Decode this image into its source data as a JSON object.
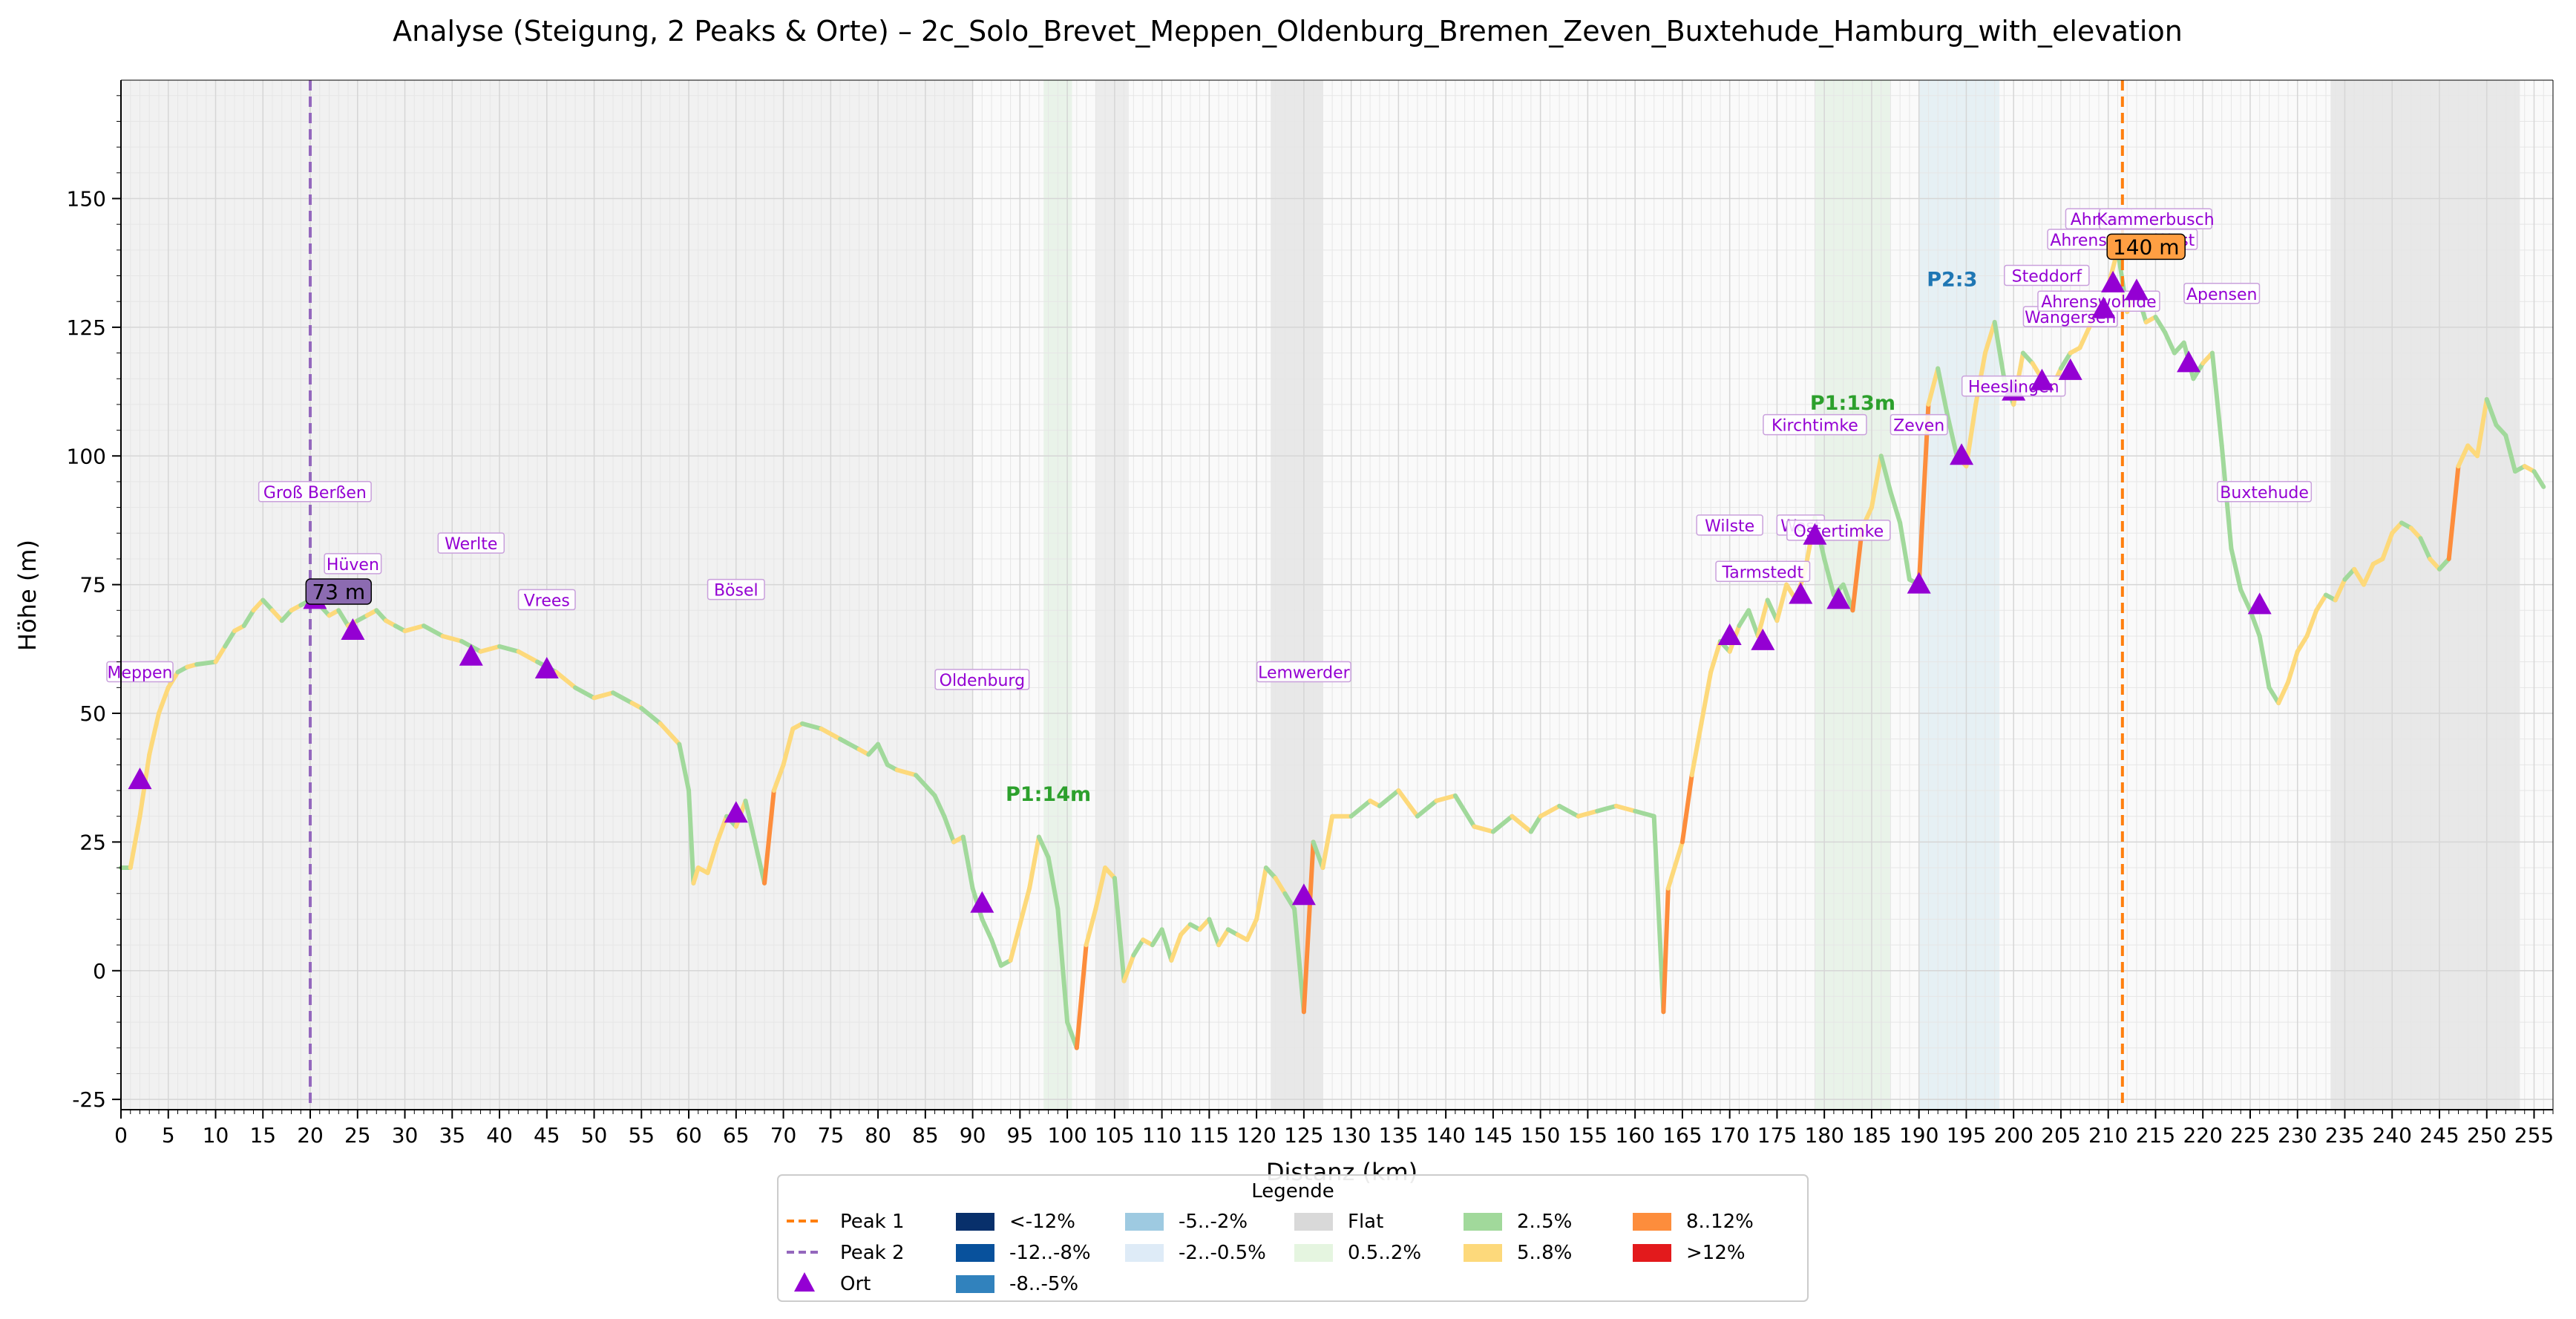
{
  "chart_data": {
    "type": "line",
    "title": "Analyse (Steigung, 2 Peaks & Orte) – 2c_Solo_Brevet_Meppen_Oldenburg_Bremen_Zeven_Buxtehude_Hamburg_with_elevation",
    "xlabel": "Distanz (km)",
    "ylabel": "Höhe (m)",
    "xlim": [
      0,
      257
    ],
    "ylim": [
      -27,
      173
    ],
    "x_ticks": [
      0,
      5,
      10,
      15,
      20,
      25,
      30,
      35,
      40,
      45,
      50,
      55,
      60,
      65,
      70,
      75,
      80,
      85,
      90,
      95,
      100,
      105,
      110,
      115,
      120,
      125,
      130,
      135,
      140,
      145,
      150,
      155,
      160,
      165,
      170,
      175,
      180,
      185,
      190,
      195,
      200,
      205,
      210,
      215,
      220,
      225,
      230,
      235,
      240,
      245,
      250,
      255
    ],
    "y_ticks": [
      -25,
      0,
      25,
      50,
      75,
      100,
      125,
      150
    ],
    "grid": true,
    "legend_position": "bottom-center",
    "elevation_profile": [
      [
        0,
        20
      ],
      [
        1,
        20
      ],
      [
        2,
        30
      ],
      [
        3,
        42
      ],
      [
        4,
        50
      ],
      [
        5,
        55
      ],
      [
        6,
        58
      ],
      [
        7,
        59
      ],
      [
        8,
        59.5
      ],
      [
        10,
        60
      ],
      [
        11,
        63
      ],
      [
        12,
        66
      ],
      [
        13,
        67
      ],
      [
        14,
        70
      ],
      [
        15,
        72
      ],
      [
        16,
        70
      ],
      [
        17,
        68
      ],
      [
        18,
        70
      ],
      [
        19,
        71
      ],
      [
        20,
        72
      ],
      [
        21,
        71
      ],
      [
        22,
        69
      ],
      [
        23,
        70
      ],
      [
        24,
        67
      ],
      [
        25,
        68
      ],
      [
        26,
        69
      ],
      [
        27,
        70
      ],
      [
        28,
        68
      ],
      [
        29,
        67
      ],
      [
        30,
        66
      ],
      [
        32,
        67
      ],
      [
        34,
        65
      ],
      [
        36,
        64
      ],
      [
        38,
        62
      ],
      [
        40,
        63
      ],
      [
        42,
        62
      ],
      [
        44,
        60
      ],
      [
        46,
        58
      ],
      [
        48,
        55
      ],
      [
        50,
        53
      ],
      [
        52,
        54
      ],
      [
        54,
        52
      ],
      [
        55,
        51
      ],
      [
        57,
        48
      ],
      [
        59,
        44
      ],
      [
        60,
        35
      ],
      [
        60.5,
        17
      ],
      [
        61,
        20
      ],
      [
        62,
        19
      ],
      [
        63,
        25
      ],
      [
        64,
        30
      ],
      [
        65,
        28
      ],
      [
        66,
        33
      ],
      [
        67,
        25
      ],
      [
        68,
        17
      ],
      [
        69,
        35
      ],
      [
        70,
        40
      ],
      [
        71,
        47
      ],
      [
        72,
        48
      ],
      [
        74,
        47
      ],
      [
        76,
        45
      ],
      [
        78,
        43
      ],
      [
        79,
        42
      ],
      [
        80,
        44
      ],
      [
        81,
        40
      ],
      [
        82,
        39
      ],
      [
        84,
        38
      ],
      [
        86,
        34
      ],
      [
        87,
        30
      ],
      [
        88,
        25
      ],
      [
        89,
        26
      ],
      [
        90,
        16
      ],
      [
        91,
        10
      ],
      [
        92,
        6
      ],
      [
        93,
        1
      ],
      [
        94,
        2
      ],
      [
        95,
        9
      ],
      [
        96,
        16
      ],
      [
        97,
        26
      ],
      [
        98,
        22
      ],
      [
        99,
        12
      ],
      [
        100,
        -10
      ],
      [
        101,
        -15
      ],
      [
        102,
        5
      ],
      [
        103,
        12
      ],
      [
        104,
        20
      ],
      [
        105,
        18
      ],
      [
        106,
        -2
      ],
      [
        107,
        3
      ],
      [
        108,
        6
      ],
      [
        109,
        5
      ],
      [
        110,
        8
      ],
      [
        111,
        2
      ],
      [
        112,
        7
      ],
      [
        113,
        9
      ],
      [
        114,
        8
      ],
      [
        115,
        10
      ],
      [
        116,
        5
      ],
      [
        117,
        8
      ],
      [
        118,
        7
      ],
      [
        119,
        6
      ],
      [
        120,
        10
      ],
      [
        121,
        20
      ],
      [
        122,
        18
      ],
      [
        123,
        15
      ],
      [
        124,
        12
      ],
      [
        125,
        -8
      ],
      [
        126,
        25
      ],
      [
        127,
        20
      ],
      [
        128,
        30
      ],
      [
        130,
        30
      ],
      [
        132,
        33
      ],
      [
        133,
        32
      ],
      [
        135,
        35
      ],
      [
        137,
        30
      ],
      [
        139,
        33
      ],
      [
        141,
        34
      ],
      [
        143,
        28
      ],
      [
        145,
        27
      ],
      [
        147,
        30
      ],
      [
        149,
        27
      ],
      [
        150,
        30
      ],
      [
        152,
        32
      ],
      [
        154,
        30
      ],
      [
        156,
        31
      ],
      [
        158,
        32
      ],
      [
        160,
        31
      ],
      [
        162,
        30
      ],
      [
        163,
        -8
      ],
      [
        163.5,
        16
      ],
      [
        165,
        25
      ],
      [
        166,
        38
      ],
      [
        167,
        48
      ],
      [
        168,
        58
      ],
      [
        169,
        64
      ],
      [
        170,
        62
      ],
      [
        171,
        67
      ],
      [
        172,
        70
      ],
      [
        173,
        65
      ],
      [
        174,
        72
      ],
      [
        175,
        68
      ],
      [
        176,
        75
      ],
      [
        177,
        72
      ],
      [
        178,
        78
      ],
      [
        179,
        88
      ],
      [
        180,
        80
      ],
      [
        181,
        73
      ],
      [
        182,
        75
      ],
      [
        183,
        70
      ],
      [
        184,
        86
      ],
      [
        185,
        90
      ],
      [
        186,
        100
      ],
      [
        187,
        93
      ],
      [
        188,
        87
      ],
      [
        189,
        76
      ],
      [
        190,
        75
      ],
      [
        191,
        110
      ],
      [
        192,
        117
      ],
      [
        193,
        108
      ],
      [
        194,
        100
      ],
      [
        195,
        98
      ],
      [
        196,
        110
      ],
      [
        197,
        120
      ],
      [
        198,
        126
      ],
      [
        199,
        115
      ],
      [
        200,
        110
      ],
      [
        201,
        120
      ],
      [
        202,
        118
      ],
      [
        203,
        115
      ],
      [
        204,
        113
      ],
      [
        205,
        117
      ],
      [
        206,
        120
      ],
      [
        207,
        121
      ],
      [
        208,
        125
      ],
      [
        209,
        130
      ],
      [
        210,
        133
      ],
      [
        211,
        140
      ],
      [
        212,
        128
      ],
      [
        213,
        132
      ],
      [
        214,
        126
      ],
      [
        215,
        127
      ],
      [
        216,
        124
      ],
      [
        217,
        120
      ],
      [
        218,
        122
      ],
      [
        219,
        115
      ],
      [
        220,
        118
      ],
      [
        221,
        120
      ],
      [
        222,
        102
      ],
      [
        223,
        82
      ],
      [
        224,
        74
      ],
      [
        225,
        70
      ],
      [
        226,
        65
      ],
      [
        227,
        55
      ],
      [
        228,
        52
      ],
      [
        229,
        56
      ],
      [
        230,
        62
      ],
      [
        231,
        65
      ],
      [
        232,
        70
      ],
      [
        233,
        73
      ],
      [
        234,
        72
      ],
      [
        235,
        76
      ],
      [
        236,
        78
      ],
      [
        237,
        75
      ],
      [
        238,
        79
      ],
      [
        239,
        80
      ],
      [
        240,
        85
      ],
      [
        241,
        87
      ],
      [
        242,
        86
      ],
      [
        243,
        84
      ],
      [
        244,
        80
      ],
      [
        245,
        78
      ],
      [
        246,
        80
      ],
      [
        247,
        98
      ],
      [
        248,
        102
      ],
      [
        249,
        100
      ],
      [
        250,
        111
      ],
      [
        251,
        106
      ],
      [
        252,
        104
      ],
      [
        253,
        97
      ],
      [
        254,
        98
      ],
      [
        255,
        97
      ],
      [
        256,
        94
      ]
    ],
    "peaks": [
      {
        "name": "Peak 1",
        "x": 211.5,
        "color": "#ff7f0e",
        "style": "dashed"
      },
      {
        "name": "Peak 2",
        "x": 20,
        "color": "#9467bd",
        "style": "dashed"
      }
    ],
    "peak_tags": [
      {
        "text": "73 m",
        "x": 23,
        "y": 73.5,
        "bg": "#8c6bb1"
      },
      {
        "text": "140 m",
        "x": 214,
        "y": 140.5,
        "bg": "#ff9f43"
      }
    ],
    "climb_labels": [
      {
        "text": "P1:14m",
        "x": 98,
        "y": 33,
        "color": "#2ca02c"
      },
      {
        "text": "P1:13m",
        "x": 183,
        "y": 109,
        "color": "#2ca02c"
      },
      {
        "text": "P2:3",
        "x": 193.5,
        "y": 133,
        "color": "#1f77b4"
      }
    ],
    "shaded_regions": [
      {
        "x0": 0,
        "x1": 90,
        "color": "#e6e6e6"
      },
      {
        "x0": 97.5,
        "x1": 100.5,
        "color": "#d4ecd4"
      },
      {
        "x0": 103,
        "x1": 106.5,
        "color": "#dcdcdc"
      },
      {
        "x0": 121.5,
        "x1": 127,
        "color": "#d2d2d2"
      },
      {
        "x0": 179,
        "x1": 187,
        "color": "#d4ecd4"
      },
      {
        "x0": 190,
        "x1": 198.5,
        "color": "#cfe5ee"
      },
      {
        "x0": 233.5,
        "x1": 253.5,
        "color": "#d2d2d2"
      }
    ],
    "towns": [
      {
        "name": "Meppen",
        "x": 2,
        "y": 37,
        "lx": 2,
        "ly": 58
      },
      {
        "name": "Groß Berßen",
        "x": 20.5,
        "y": 72,
        "lx": 20.5,
        "ly": 93
      },
      {
        "name": "Hüven",
        "x": 24.5,
        "y": 66,
        "lx": 24.5,
        "ly": 79
      },
      {
        "name": "Werlte",
        "x": 37,
        "y": 61,
        "lx": 37,
        "ly": 83
      },
      {
        "name": "Vrees",
        "x": 45,
        "y": 58.5,
        "lx": 45,
        "ly": 72
      },
      {
        "name": "Bösel",
        "x": 65,
        "y": 30.5,
        "lx": 65,
        "ly": 74
      },
      {
        "name": "Oldenburg",
        "x": 91,
        "y": 13,
        "lx": 91,
        "ly": 56.5
      },
      {
        "name": "Lemwerder",
        "x": 125,
        "y": 14.5,
        "lx": 125,
        "ly": 58
      },
      {
        "name": "Wilste",
        "x": 170,
        "y": 65,
        "lx": 170,
        "ly": 86.5
      },
      {
        "name": "Tarmstedt",
        "x": 173.5,
        "y": 64,
        "lx": 173.5,
        "ly": 77.5
      },
      {
        "name": "West",
        "x": 177.5,
        "y": 73,
        "lx": 177.5,
        "ly": 86.5
      },
      {
        "name": "Ostertimke",
        "x": 181.5,
        "y": 72,
        "lx": 181.5,
        "ly": 85.5
      },
      {
        "name": "Kirchtimke",
        "x": 179,
        "y": 84.5,
        "lx": 179,
        "ly": 106
      },
      {
        "name": "Zeven",
        "x": 190,
        "y": 75,
        "lx": 190,
        "ly": 106
      },
      {
        "name": "Heeslingen",
        "x": 200,
        "y": 112.5,
        "lx": 200,
        "ly": 113.5
      },
      {
        "name": "Steddorf",
        "x": 194.5,
        "y": 100,
        "lx": 203.5,
        "ly": 135
      },
      {
        "name": "Wangersen",
        "x": 203,
        "y": 114.5,
        "lx": 206,
        "ly": 127
      },
      {
        "name": "Ahrenswohlde",
        "x": 206,
        "y": 116.5,
        "lx": 209,
        "ly": 130
      },
      {
        "name": "Ahrens",
        "x": 209.5,
        "y": 128.5,
        "lx": 209,
        "ly": 146
      },
      {
        "name": "Ahrensmoor West",
        "x": 210.5,
        "y": 133.5,
        "lx": 211.5,
        "ly": 142
      },
      {
        "name": "Kammerbusch",
        "x": 213,
        "y": 132,
        "lx": 215,
        "ly": 146
      },
      {
        "name": "Apensen",
        "x": 218.5,
        "y": 118,
        "lx": 222,
        "ly": 131.5
      },
      {
        "name": "Buxtehude",
        "x": 226,
        "y": 71,
        "lx": 226.5,
        "ly": 93
      }
    ],
    "legend_title": "Legende",
    "legend_entries": [
      {
        "label": "Peak 1",
        "kind": "dash",
        "color": "#ff7f0e"
      },
      {
        "label": "Peak 2",
        "kind": "dash",
        "color": "#9467bd"
      },
      {
        "label": "Ort",
        "kind": "triangle",
        "color": "#9400D3"
      },
      {
        "label": "<-12%",
        "kind": "patch",
        "color": "#08306b"
      },
      {
        "label": "-12..-8%",
        "kind": "patch",
        "color": "#08519c"
      },
      {
        "label": "-8..-5%",
        "kind": "patch",
        "color": "#3182bd"
      },
      {
        "label": "-5..-2%",
        "kind": "patch",
        "color": "#9ecae1"
      },
      {
        "label": "-2..-0.5%",
        "kind": "patch",
        "color": "#deebf7"
      },
      {
        "label": "",
        "kind": "none",
        "color": ""
      },
      {
        "label": "Flat",
        "kind": "patch",
        "color": "#d9d9d9"
      },
      {
        "label": "0.5..2%",
        "kind": "patch",
        "color": "#e5f5e0"
      },
      {
        "label": "",
        "kind": "none",
        "color": ""
      },
      {
        "label": "2..5%",
        "kind": "patch",
        "color": "#a1d99b"
      },
      {
        "label": "5..8%",
        "kind": "patch",
        "color": "#fdd97b"
      },
      {
        "label": "",
        "kind": "none",
        "color": ""
      },
      {
        "label": "8..12%",
        "kind": "patch",
        "color": "#fd8d3c"
      },
      {
        "label": ">12%",
        "kind": "patch",
        "color": "#e31a1c"
      },
      {
        "label": "",
        "kind": "none",
        "color": ""
      }
    ]
  }
}
